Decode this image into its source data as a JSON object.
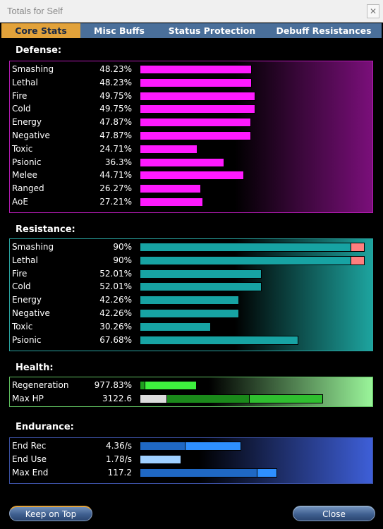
{
  "window": {
    "title": "Totals for Self",
    "close_glyph": "✕"
  },
  "tabs": [
    {
      "label": "Core Stats",
      "active": true
    },
    {
      "label": "Misc Buffs",
      "active": false
    },
    {
      "label": "Status Protection",
      "active": false
    },
    {
      "label": "Debuff Resistances",
      "active": false
    }
  ],
  "sections": {
    "defense": {
      "label": "Defense:",
      "rows": [
        {
          "name": "Smashing",
          "value": "48.23%",
          "level": 48.23
        },
        {
          "name": "Lethal",
          "value": "48.23%",
          "level": 48.23
        },
        {
          "name": "Fire",
          "value": "49.75%",
          "level": 49.75
        },
        {
          "name": "Cold",
          "value": "49.75%",
          "level": 49.75
        },
        {
          "name": "Energy",
          "value": "47.87%",
          "level": 47.87
        },
        {
          "name": "Negative",
          "value": "47.87%",
          "level": 47.87
        },
        {
          "name": "Toxic",
          "value": "24.71%",
          "level": 24.71
        },
        {
          "name": "Psionic",
          "value": "36.3%",
          "level": 36.3
        },
        {
          "name": "Melee",
          "value": "44.71%",
          "level": 44.71
        },
        {
          "name": "Ranged",
          "value": "26.27%",
          "level": 26.27
        },
        {
          "name": "AoE",
          "value": "27.21%",
          "level": 27.21
        }
      ]
    },
    "resistance": {
      "label": "Resistance:",
      "rows": [
        {
          "name": "Smashing",
          "value": "90%",
          "level": 90,
          "overcap": true
        },
        {
          "name": "Lethal",
          "value": "90%",
          "level": 90,
          "overcap": true
        },
        {
          "name": "Fire",
          "value": "52.01%",
          "level": 52.01
        },
        {
          "name": "Cold",
          "value": "52.01%",
          "level": 52.01
        },
        {
          "name": "Energy",
          "value": "42.26%",
          "level": 42.26
        },
        {
          "name": "Negative",
          "value": "42.26%",
          "level": 42.26
        },
        {
          "name": "Toxic",
          "value": "30.26%",
          "level": 30.26
        },
        {
          "name": "Psionic",
          "value": "67.68%",
          "level": 67.68
        }
      ]
    },
    "health": {
      "label": "Health:",
      "rows": [
        {
          "name": "Regeneration",
          "value": "977.83%"
        },
        {
          "name": "Max HP",
          "value": "3122.6"
        }
      ]
    },
    "endurance": {
      "label": "Endurance:",
      "rows": [
        {
          "name": "End Rec",
          "value": "4.36/s"
        },
        {
          "name": "End Use",
          "value": "1.78/s"
        },
        {
          "name": "Max End",
          "value": "117.2"
        }
      ]
    }
  },
  "buttons": {
    "keep_on_top": "Keep on Top",
    "close": "Close"
  },
  "colors": {
    "defense_bar": "#ff1aff",
    "resistance_bar": "#17a3a3",
    "resistance_overcap": "#ff7f7f",
    "health_regen": "#3ef03e",
    "health_hp_dark": "#1a8a1a",
    "health_hp_light": "#2fbf2f",
    "endurance_dark": "#1f68c4",
    "endurance_light": "#2e8fff",
    "tab_active": "#e2a23a"
  }
}
